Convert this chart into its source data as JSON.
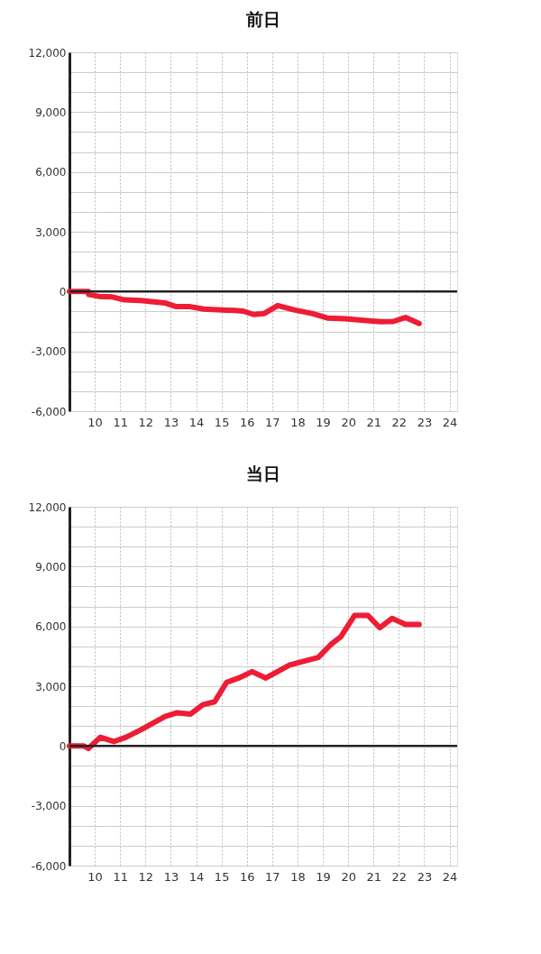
{
  "chart_data": [
    {
      "type": "line",
      "title": "前日",
      "xlim": [
        9,
        24.3
      ],
      "xticks": [
        10,
        11,
        12,
        13,
        14,
        15,
        16,
        17,
        18,
        19,
        20,
        21,
        22,
        23,
        24
      ],
      "ylim": [
        -6000,
        12000
      ],
      "yticks": [
        {
          "value": -6000,
          "label": "-6,000"
        },
        {
          "value": -5000,
          "label": null
        },
        {
          "value": -4000,
          "label": null
        },
        {
          "value": -3000,
          "label": "-3,000"
        },
        {
          "value": -2000,
          "label": null
        },
        {
          "value": -1000,
          "label": null
        },
        0,
        {
          "value": 1000,
          "label": null
        },
        {
          "value": 2000,
          "label": null
        },
        {
          "value": 3000,
          "label": "3,000"
        },
        {
          "value": 4000,
          "label": null
        },
        {
          "value": 5000,
          "label": null
        },
        {
          "value": 6000,
          "label": "6,000"
        },
        {
          "value": 7000,
          "label": null
        },
        {
          "value": 8000,
          "label": null
        },
        {
          "value": 9000,
          "label": "9,000"
        },
        {
          "value": 10000,
          "label": null
        },
        {
          "value": 11000,
          "label": null
        },
        {
          "value": 12000,
          "label": "12,000"
        }
      ],
      "grid": true,
      "marker": "none",
      "line_style": "solid",
      "ref_lines": [
        {
          "axis": "y",
          "value": 0,
          "color": "#222222"
        }
      ],
      "series": [
        {
          "color": "#ee1c35",
          "x": [
            9,
            9.75,
            9.76,
            10.16,
            10.7,
            11.17,
            11.8,
            12.77,
            13.19,
            13.72,
            14.3,
            15.5,
            15.86,
            16.26,
            16.69,
            17.22,
            17.86,
            18.57,
            19.18,
            19.89,
            20.7,
            21.3,
            21.78,
            22.26,
            22.8
          ],
          "values": [
            0,
            0,
            -150,
            -240,
            -270,
            -420,
            -450,
            -570,
            -750,
            -750,
            -880,
            -950,
            -980,
            -1150,
            -1100,
            -700,
            -920,
            -1100,
            -1330,
            -1360,
            -1450,
            -1510,
            -1500,
            -1300,
            -1600
          ]
        }
      ]
    },
    {
      "type": "line",
      "title": "当日",
      "xlim": [
        9,
        24.3
      ],
      "xticks": [
        10,
        11,
        12,
        13,
        14,
        15,
        16,
        17,
        18,
        19,
        20,
        21,
        22,
        23,
        24
      ],
      "ylim": [
        -6000,
        12000
      ],
      "yticks": [
        {
          "value": -6000,
          "label": "-6,000"
        },
        {
          "value": -5000,
          "label": null
        },
        {
          "value": -4000,
          "label": null
        },
        {
          "value": -3000,
          "label": "-3,000"
        },
        {
          "value": -2000,
          "label": null
        },
        {
          "value": -1000,
          "label": null
        },
        0,
        {
          "value": 1000,
          "label": null
        },
        {
          "value": 2000,
          "label": null
        },
        {
          "value": 3000,
          "label": "3,000"
        },
        {
          "value": 4000,
          "label": null
        },
        {
          "value": 5000,
          "label": null
        },
        {
          "value": 6000,
          "label": "6,000"
        },
        {
          "value": 7000,
          "label": null
        },
        {
          "value": 8000,
          "label": null
        },
        {
          "value": 9000,
          "label": "9,000"
        },
        {
          "value": 10000,
          "label": null
        },
        {
          "value": 11000,
          "label": null
        },
        {
          "value": 12000,
          "label": "12,000"
        }
      ],
      "grid": true,
      "marker": "none",
      "line_style": "solid",
      "ref_lines": [
        {
          "axis": "y",
          "value": 0,
          "color": "#222222"
        }
      ],
      "series": [
        {
          "color": "#ee1c35",
          "x": [
            9,
            9.57,
            9.75,
            10.22,
            10.75,
            11.23,
            11.82,
            12.77,
            13.25,
            13.78,
            14.26,
            14.73,
            15.2,
            15.68,
            16.21,
            16.75,
            17.7,
            18.82,
            19.3,
            19.71,
            20.25,
            20.78,
            21.25,
            21.73,
            22.26,
            22.8
          ],
          "values": [
            0,
            0,
            -120,
            440,
            220,
            440,
            810,
            1480,
            1670,
            1600,
            2070,
            2220,
            3190,
            3410,
            3730,
            3410,
            4070,
            4440,
            5070,
            5480,
            6550,
            6550,
            5930,
            6400,
            6100,
            6100
          ]
        }
      ]
    }
  ]
}
